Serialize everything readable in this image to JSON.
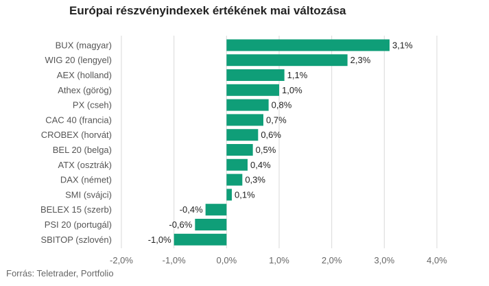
{
  "title": "Európai részvényindexek értékének mai változása",
  "source": "Forrás: Teletrader, Portfolio",
  "chart_data": {
    "type": "bar",
    "orientation": "horizontal",
    "title": "Európai részvényindexek értékének mai változása",
    "categories": [
      "BUX (magyar)",
      "WIG 20 (lengyel)",
      "AEX (holland)",
      "Athex (görög)",
      "PX (cseh)",
      "CAC 40 (francia)",
      "CROBEX (horvát)",
      "BEL 20 (belga)",
      "ATX (osztrák)",
      "DAX (német)",
      "SMI (svájci)",
      "BELEX 15 (szerb)",
      "PSI 20 (portugál)",
      "SBITOP (szlovén)"
    ],
    "values": [
      3.1,
      2.3,
      1.1,
      1.0,
      0.8,
      0.7,
      0.6,
      0.5,
      0.4,
      0.3,
      0.1,
      -0.4,
      -0.6,
      -1.0
    ],
    "data_labels": [
      "3,1%",
      "2,3%",
      "1,1%",
      "1,0%",
      "0,8%",
      "0,7%",
      "0,6%",
      "0,5%",
      "0,4%",
      "0,3%",
      "0,1%",
      "-0,4%",
      "-0,6%",
      "-1,0%"
    ],
    "xlim": [
      -2,
      4
    ],
    "xticks": [
      -2,
      -1,
      0,
      1,
      2,
      3,
      4
    ],
    "xtick_labels": [
      "-2,0%",
      "-1,0%",
      "0,0%",
      "1,0%",
      "2,0%",
      "3,0%",
      "4,0%"
    ],
    "xlabel": "",
    "ylabel": "",
    "grid": "vertical",
    "legend": "none",
    "bar_color": "#0f9e78",
    "grid_color": "#d9d9d9"
  }
}
